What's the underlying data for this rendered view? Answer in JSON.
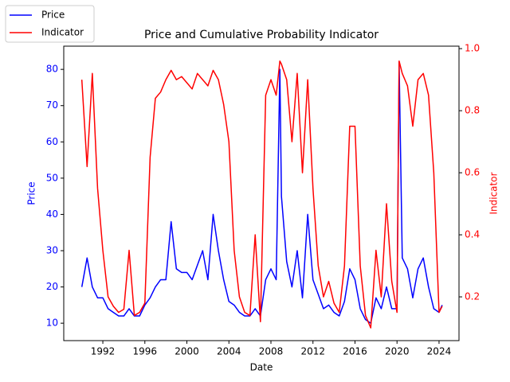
{
  "chart_data": {
    "type": "line",
    "title": "Price and Cumulative Probability Indicator",
    "xlabel": "Date",
    "ylabel": "Price",
    "y2label": "Indicator",
    "x": [
      1990,
      1990.5,
      1991,
      1991.5,
      1992,
      1992.5,
      1993,
      1993.5,
      1994,
      1994.5,
      1995,
      1995.5,
      1996,
      1996.5,
      1997,
      1997.5,
      1998,
      1998.5,
      1999,
      1999.5,
      2000,
      2000.5,
      2001,
      2001.5,
      2002,
      2002.5,
      2003,
      2003.5,
      2004,
      2004.5,
      2005,
      2005.5,
      2006,
      2006.5,
      2007,
      2007.5,
      2008,
      2008.5,
      2008.85,
      2009,
      2009.5,
      2010,
      2010.5,
      2011,
      2011.5,
      2012,
      2012.5,
      2013,
      2013.5,
      2014,
      2014.5,
      2015,
      2015.5,
      2016,
      2016.5,
      2017,
      2017.5,
      2018,
      2018.5,
      2019,
      2019.5,
      2020,
      2020.2,
      2020.5,
      2021,
      2021.5,
      2022,
      2022.5,
      2023,
      2023.5,
      2024,
      2024.3
    ],
    "series": [
      {
        "name": "Price",
        "color": "#0000ff",
        "axis": "y",
        "values": [
          20,
          28,
          20,
          17,
          17,
          14,
          13,
          12,
          12,
          14,
          12,
          12,
          15,
          17,
          20,
          22,
          22,
          38,
          25,
          24,
          24,
          22,
          26,
          30,
          22,
          40,
          30,
          22,
          16,
          15,
          13,
          12,
          12,
          14,
          12,
          22,
          25,
          22,
          80,
          45,
          27,
          20,
          30,
          17,
          40,
          22,
          18,
          14,
          15,
          13,
          12,
          16,
          25,
          22,
          14,
          11,
          10,
          17,
          14,
          20,
          14,
          14,
          82,
          28,
          25,
          17,
          25,
          28,
          20,
          14,
          13,
          15
        ]
      },
      {
        "name": "Indicator",
        "color": "#ff0000",
        "axis": "y2",
        "values": [
          0.9,
          0.62,
          0.92,
          0.55,
          0.35,
          0.2,
          0.17,
          0.15,
          0.16,
          0.35,
          0.14,
          0.15,
          0.18,
          0.65,
          0.84,
          0.86,
          0.9,
          0.93,
          0.9,
          0.91,
          0.89,
          0.87,
          0.92,
          0.9,
          0.88,
          0.93,
          0.9,
          0.82,
          0.7,
          0.35,
          0.2,
          0.15,
          0.14,
          0.4,
          0.12,
          0.85,
          0.9,
          0.85,
          0.96,
          0.95,
          0.9,
          0.7,
          0.92,
          0.6,
          0.9,
          0.55,
          0.3,
          0.2,
          0.25,
          0.18,
          0.15,
          0.3,
          0.75,
          0.75,
          0.3,
          0.14,
          0.1,
          0.35,
          0.2,
          0.5,
          0.25,
          0.15,
          0.96,
          0.92,
          0.88,
          0.75,
          0.9,
          0.92,
          0.85,
          0.6,
          0.15,
          0.17
        ]
      }
    ],
    "xlim": [
      1988.28,
      2025.9
    ],
    "xticks": [
      1992,
      1996,
      2000,
      2004,
      2008,
      2012,
      2016,
      2020,
      2024
    ],
    "ylim": [
      5.2,
      86.4
    ],
    "yticks": [
      10,
      20,
      30,
      40,
      50,
      60,
      70,
      80
    ],
    "y2lim": [
      0.059,
      1.008
    ],
    "y2ticks": [
      0.2,
      0.4,
      0.6,
      0.8,
      {
        "value": 1,
        "label": "1.0"
      }
    ],
    "legend": "upper left"
  }
}
